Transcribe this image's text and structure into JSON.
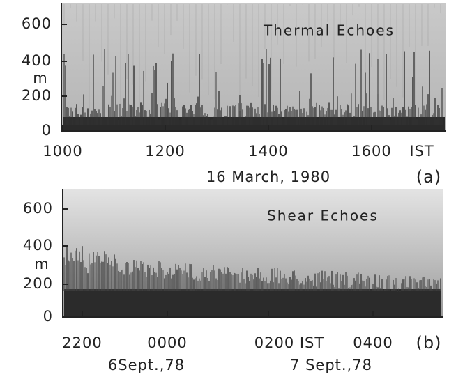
{
  "panels": [
    {
      "title": "Thermal Echoes",
      "y_ticks": [
        "600",
        "400",
        "200",
        "0"
      ],
      "y_unit": "m",
      "x_ticks": [
        "1000",
        "1200",
        "1400",
        "1600",
        "IST"
      ],
      "dates": [
        "16 March, 1980"
      ],
      "label": "(a)"
    },
    {
      "title": "Shear Echoes",
      "y_ticks": [
        "600",
        "400",
        "200",
        "0"
      ],
      "y_unit": "m",
      "x_ticks": [
        "2200",
        "0000",
        "0200 IST",
        "0400"
      ],
      "dates": [
        "6Sept.,78",
        "7 Sept.,78"
      ],
      "label": "(b)"
    }
  ]
}
